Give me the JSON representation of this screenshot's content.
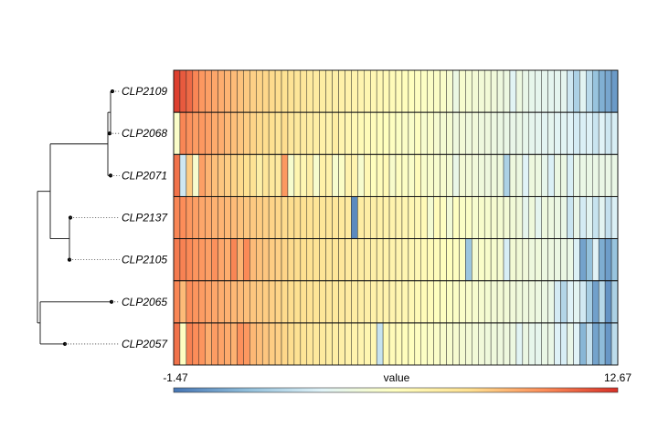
{
  "chart_data": {
    "type": "heatmap",
    "rows": [
      "CLP2109",
      "CLP2068",
      "CLP2071",
      "CLP2137",
      "CLP2105",
      "CLP2065",
      "CLP2057"
    ],
    "n_columns": 70,
    "values": [
      [
        12.3,
        11.6,
        11.2,
        10.5,
        10.0,
        9.8,
        9.6,
        9.4,
        9.2,
        9.0,
        8.8,
        8.6,
        8.4,
        8.3,
        8.2,
        8.1,
        8.0,
        7.8,
        7.7,
        7.5,
        7.4,
        7.2,
        7.1,
        7.0,
        6.9,
        6.8,
        6.7,
        6.6,
        6.5,
        6.4,
        6.3,
        6.2,
        6.1,
        6.0,
        5.9,
        5.8,
        5.7,
        5.6,
        5.5,
        5.4,
        5.3,
        5.3,
        5.2,
        4.9,
        4.1,
        5.0,
        4.8,
        4.7,
        4.6,
        4.6,
        4.5,
        4.3,
        4.2,
        3.4,
        4.2,
        3.9,
        3.8,
        3.7,
        3.7,
        3.6,
        3.6,
        3.6,
        2.7,
        1.7,
        3.5,
        2.1,
        1.1,
        0.4,
        0.1,
        -0.3
      ],
      [
        5.2,
        10.5,
        10.2,
        9.9,
        10.0,
        9.8,
        9.5,
        9.4,
        9.1,
        8.9,
        8.7,
        8.5,
        8.3,
        8.1,
        8.0,
        7.9,
        7.6,
        8.0,
        7.4,
        7.3,
        7.1,
        7.0,
        6.9,
        6.7,
        6.5,
        7.0,
        6.4,
        6.3,
        6.1,
        6.0,
        5.9,
        5.8,
        5.7,
        5.6,
        5.5,
        5.4,
        5.3,
        5.2,
        5.5,
        5.0,
        5.2,
        4.9,
        4.8,
        4.8,
        4.3,
        4.6,
        4.4,
        4.5,
        4.3,
        4.3,
        4.2,
        4.1,
        4.0,
        3.9,
        4.0,
        3.8,
        3.7,
        3.6,
        3.5,
        3.6,
        3.4,
        3.4,
        3.3,
        2.9,
        3.1,
        3.2,
        2.6,
        3.3,
        2.7,
        3.0
      ],
      [
        11.0,
        2.7,
        8.5,
        5.0,
        9.8,
        9.2,
        8.9,
        8.7,
        8.5,
        8.3,
        8.1,
        7.9,
        7.7,
        6.8,
        7.5,
        7.3,
        7.2,
        10.0,
        5.0,
        6.3,
        6.2,
        6.8,
        5.0,
        6.7,
        6.6,
        5.0,
        5.3,
        6.5,
        6.4,
        5.0,
        6.1,
        5.7,
        5.8,
        6.0,
        5.1,
        5.5,
        5.4,
        5.2,
        5.8,
        5.1,
        5.1,
        5.0,
        5.0,
        4.8,
        3.9,
        4.7,
        4.6,
        4.5,
        4.4,
        4.3,
        4.4,
        4.4,
        1.7,
        4.3,
        4.2,
        3.3,
        4.3,
        4.2,
        3.8,
        3.1,
        4.1,
        4.1,
        3.0,
        4.0,
        4.0,
        4.0,
        4.0,
        4.0,
        4.0,
        4.0
      ],
      [
        10.5,
        10.3,
        10.0,
        9.8,
        9.6,
        9.5,
        9.3,
        9.2,
        9.1,
        9.0,
        8.8,
        8.7,
        8.6,
        8.5,
        8.4,
        8.3,
        8.2,
        8.1,
        8.0,
        8.0,
        7.8,
        7.7,
        7.6,
        7.5,
        7.5,
        7.4,
        7.3,
        7.2,
        -0.8,
        7.0,
        6.9,
        6.8,
        6.7,
        6.6,
        6.5,
        6.4,
        6.3,
        6.2,
        6.1,
        6.0,
        4.8,
        5.8,
        5.5,
        4.6,
        5.5,
        5.3,
        5.3,
        5.0,
        5.1,
        5.0,
        4.9,
        4.8,
        4.7,
        4.6,
        4.5,
        3.7,
        4.4,
        3.6,
        4.3,
        4.2,
        4.1,
        4.0,
        2.6,
        3.9,
        2.9,
        3.5,
        2.5,
        3.5,
        2.4,
        3.1
      ],
      [
        10.8,
        10.6,
        10.4,
        10.1,
        10.0,
        9.8,
        10.2,
        9.6,
        9.4,
        10.5,
        9.2,
        10.4,
        9.0,
        8.8,
        8.7,
        8.5,
        8.4,
        8.3,
        8.1,
        8.0,
        7.9,
        7.8,
        7.7,
        7.6,
        7.5,
        7.5,
        7.4,
        7.2,
        7.1,
        7.0,
        6.9,
        6.8,
        6.7,
        6.6,
        6.5,
        6.4,
        6.3,
        6.2,
        6.1,
        6.0,
        5.9,
        5.8,
        5.7,
        5.6,
        5.5,
        5.4,
        1.2,
        4.8,
        5.2,
        5.1,
        5.0,
        4.9,
        3.0,
        4.7,
        4.6,
        4.5,
        4.3,
        4.4,
        4.2,
        4.2,
        4.1,
        4.1,
        4.0,
        3.1,
        0.0,
        1.0,
        3.3,
        0.3,
        -0.2,
        1.1
      ],
      [
        10.5,
        9.0,
        10.3,
        10.1,
        9.9,
        9.7,
        9.6,
        9.4,
        9.3,
        9.1,
        9.0,
        8.9,
        8.7,
        8.6,
        8.5,
        8.4,
        8.3,
        8.1,
        8.0,
        7.9,
        7.8,
        7.7,
        7.6,
        7.5,
        7.4,
        7.3,
        7.2,
        7.1,
        7.0,
        6.9,
        6.8,
        6.7,
        6.6,
        6.5,
        6.4,
        6.3,
        6.2,
        6.1,
        6.0,
        5.9,
        5.8,
        5.6,
        5.5,
        5.4,
        5.3,
        5.2,
        5.1,
        5.0,
        4.9,
        4.8,
        4.7,
        4.7,
        4.6,
        4.5,
        4.4,
        4.3,
        4.3,
        4.2,
        4.1,
        4.0,
        2.9,
        1.9,
        3.2,
        3.5,
        2.8,
        1.5,
        -0.1,
        2.0,
        -0.5,
        1.7
      ],
      [
        11.0,
        5.5,
        10.6,
        10.3,
        10.1,
        9.4,
        9.9,
        9.7,
        9.5,
        9.3,
        10.2,
        10.0,
        9.1,
        8.9,
        8.7,
        8.5,
        8.4,
        8.2,
        8.0,
        7.8,
        7.6,
        7.4,
        7.3,
        7.2,
        7.0,
        6.9,
        6.8,
        6.6,
        6.5,
        6.4,
        6.3,
        6.2,
        2.5,
        6.0,
        5.9,
        5.8,
        5.7,
        5.6,
        5.5,
        5.4,
        5.3,
        5.2,
        5.1,
        5.0,
        4.9,
        4.8,
        4.7,
        4.6,
        4.5,
        4.4,
        4.4,
        4.3,
        4.3,
        4.2,
        3.4,
        4.1,
        3.8,
        3.7,
        4.0,
        4.0,
        3.2,
        3.0,
        3.9,
        3.3,
        0.6,
        2.4,
        0.0,
        0.8,
        -0.4,
        2.2
      ]
    ],
    "row_dendrogram": {
      "leaf_order": [
        "CLP2109",
        "CLP2068",
        "CLP2071",
        "CLP2137",
        "CLP2105",
        "CLP2065",
        "CLP2057"
      ],
      "merges": [
        {
          "left": "CLP2109",
          "right": "CLP2068"
        },
        {
          "left": "CLP2109+CLP2068",
          "right": "CLP2071"
        },
        {
          "left": "CLP2137",
          "right": "CLP2105"
        },
        {
          "left": "CLP2109+CLP2068+CLP2071",
          "right": "CLP2137+CLP2105"
        },
        {
          "left": "CLP2065",
          "right": "CLP2057"
        },
        {
          "left": "upper",
          "right": "lower"
        }
      ]
    },
    "colorscale": {
      "label": "value",
      "min": -1.47,
      "max": 12.67,
      "min_label": "-1.47",
      "max_label": "12.67",
      "colors": [
        "#4575b4",
        "#91bfdb",
        "#e0f3f8",
        "#ffffbf",
        "#fee090",
        "#fc8d59",
        "#d73027"
      ]
    }
  }
}
